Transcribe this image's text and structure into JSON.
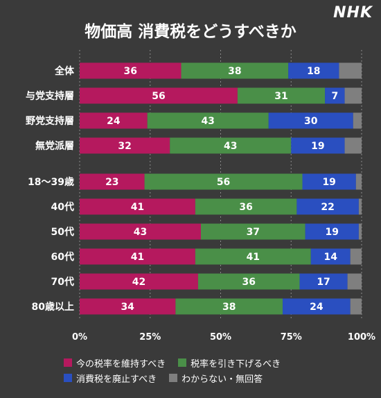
{
  "logo": "NHK",
  "chart_data": {
    "type": "bar",
    "orientation": "horizontal",
    "stacked": true,
    "title": "物価高 消費税をどうすべきか",
    "categories": [
      "全体",
      "与党支持層",
      "野党支持層",
      "無党派層",
      "18～39歳",
      "40代",
      "50代",
      "60代",
      "70代",
      "80歳以上"
    ],
    "series": [
      {
        "name": "今の税率を維持すべき",
        "color": "#b5195e",
        "values": [
          36,
          56,
          24,
          32,
          23,
          41,
          43,
          41,
          42,
          34
        ]
      },
      {
        "name": "税率を引き下げるべき",
        "color": "#4a8f48",
        "values": [
          38,
          31,
          43,
          43,
          56,
          36,
          37,
          41,
          36,
          38
        ]
      },
      {
        "name": "消費税を廃止すべき",
        "color": "#2a4fc0",
        "values": [
          18,
          7,
          30,
          19,
          19,
          22,
          19,
          14,
          17,
          24
        ]
      },
      {
        "name": "わからない・無回答",
        "color": "#7f7f7f",
        "values": [
          8,
          6,
          3,
          6,
          2,
          1,
          1,
          4,
          5,
          4
        ]
      }
    ],
    "xlim": [
      0,
      100
    ],
    "xticks": [
      "0%",
      "25%",
      "50%",
      "75%",
      "100%"
    ],
    "grid": true,
    "legend_position": "bottom"
  }
}
